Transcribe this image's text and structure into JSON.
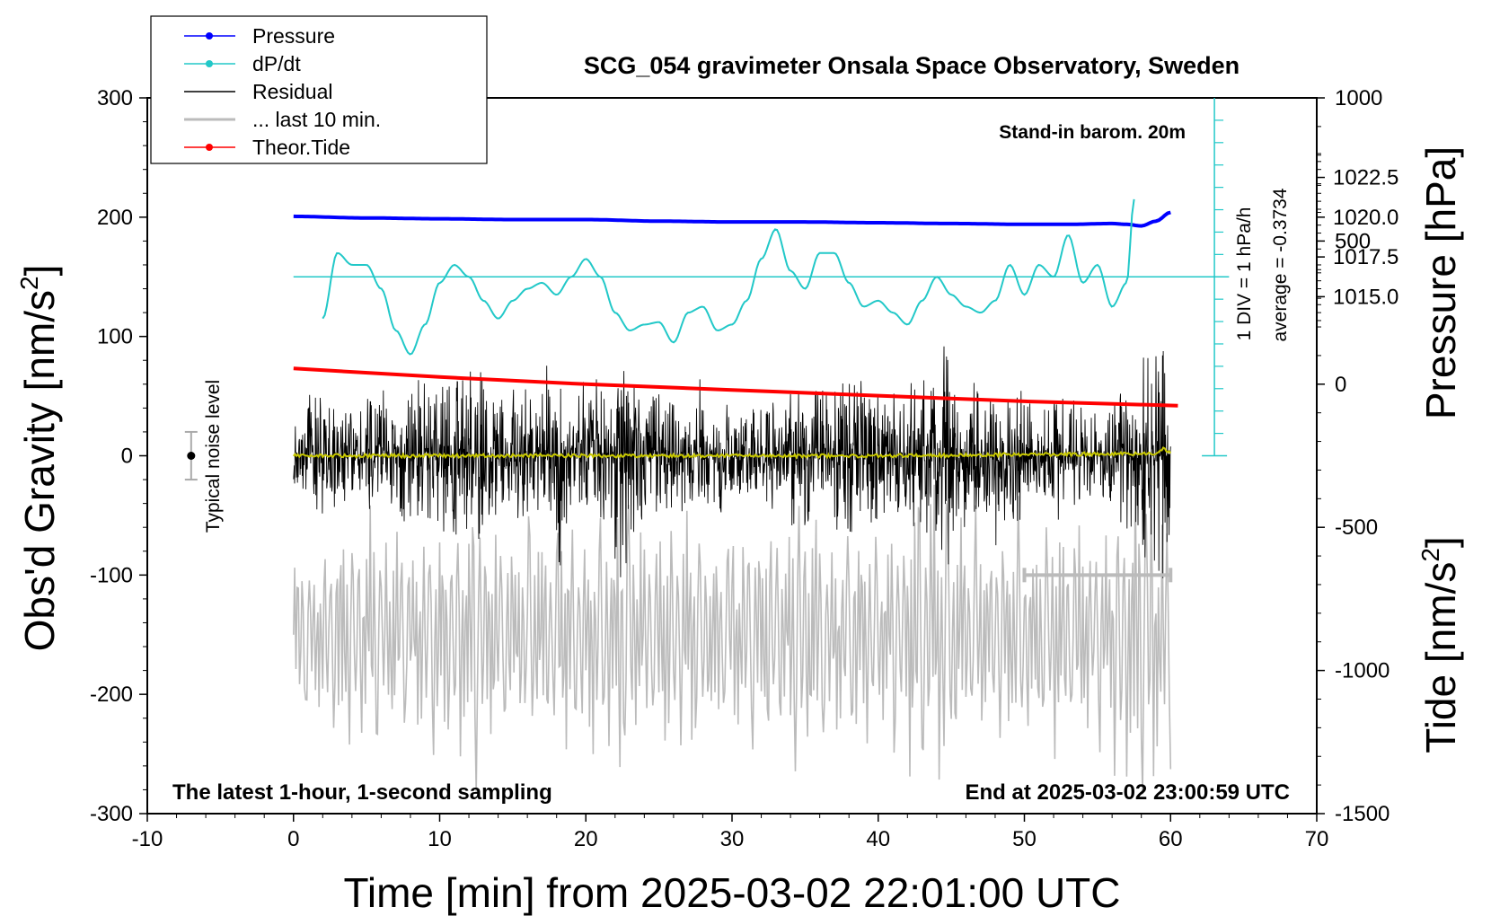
{
  "chart_data": {
    "type": "line",
    "title": "SCG_054 gravimeter Onsala Space Observatory, Sweden",
    "xlabel": "Time [min] from 2025-03-02 22:01:00 UTC",
    "ylabel_left_prefix": "Obs'd Gravity [nm/s",
    "ylabel_left_sup": "2",
    "ylabel_left_suffix": "]",
    "ylabel_pressure": "Pressure [hPa]",
    "ylabel_tide_prefix": "Tide [nm/s",
    "ylabel_tide_sup": "2",
    "ylabel_tide_suffix": "]",
    "xlim": [
      -10,
      70
    ],
    "ylim_gravity": [
      -300,
      300
    ],
    "ylim_tide": [
      -1500,
      1000
    ],
    "x_ticks": [
      "-10",
      "0",
      "10",
      "20",
      "30",
      "40",
      "50",
      "60",
      "70"
    ],
    "y_ticks_gravity": [
      "300",
      "200",
      "100",
      "0",
      "-100",
      "-200",
      "-300"
    ],
    "y_ticks_pressure": [
      "1022.5",
      "1020.0",
      "1017.5",
      "1015.0"
    ],
    "y_ticks_tide": [
      "1000",
      "500",
      "0",
      "-500",
      "-1000",
      "-1500"
    ],
    "pressure_ticks_values": [
      1022.5,
      1020.0,
      1017.5,
      1015.0
    ],
    "tide_ticks_values": [
      1000,
      500,
      0,
      -500,
      -1000,
      -1500
    ],
    "annotations": {
      "barometer": "Stand-in barom. 20m",
      "dpdt_div": "1 DIV = 1 hPa/h",
      "average": "average = -0.3734",
      "noise": "Typical noise level",
      "latest": "The latest 1-hour, 1-second sampling",
      "end": "End at 2025-03-02 23:00:59 UTC"
    },
    "legend": [
      {
        "label": "Pressure",
        "color": "#0000ff",
        "marker": true
      },
      {
        "label": "dP/dt",
        "color": "#22c8c8",
        "marker": true
      },
      {
        "label": "Residual",
        "color": "#000000",
        "marker": false
      },
      {
        "label": "... last 10 min.",
        "color": "#bbbbbb",
        "marker": false
      },
      {
        "label": "Theor.Tide",
        "color": "#ff0000",
        "marker": true
      }
    ],
    "series": [
      {
        "name": "Pressure",
        "axis": "pressure_hPa",
        "color": "#0000ff",
        "x": [
          0,
          5,
          10,
          15,
          20,
          25,
          30,
          35,
          40,
          45,
          50,
          53,
          56,
          57,
          58,
          59,
          60
        ],
        "values": [
          1020.05,
          1019.95,
          1019.9,
          1019.85,
          1019.85,
          1019.75,
          1019.7,
          1019.7,
          1019.65,
          1019.6,
          1019.55,
          1019.55,
          1019.6,
          1019.55,
          1019.45,
          1019.75,
          1020.3
        ]
      },
      {
        "name": "dP/dt",
        "axis": "dpdt_gravity_units",
        "color": "#22c8c8",
        "x": [
          2,
          3,
          4,
          5,
          6,
          7,
          8,
          9,
          10,
          11,
          12,
          13,
          14,
          15,
          16,
          17,
          18,
          19,
          20,
          21,
          22,
          23,
          24,
          25,
          26,
          27,
          28,
          29,
          30,
          31,
          32,
          33,
          34,
          35,
          36,
          37,
          38,
          39,
          40,
          41,
          42,
          43,
          44,
          45,
          46,
          47,
          48,
          49,
          50,
          51,
          52,
          53,
          54,
          55,
          56,
          57,
          57.5
        ],
        "values": [
          115,
          170,
          160,
          160,
          140,
          105,
          85,
          110,
          145,
          160,
          150,
          130,
          115,
          130,
          140,
          145,
          135,
          150,
          165,
          150,
          120,
          105,
          110,
          112,
          95,
          120,
          125,
          105,
          110,
          130,
          165,
          190,
          155,
          140,
          170,
          170,
          145,
          125,
          130,
          120,
          110,
          130,
          150,
          135,
          125,
          120,
          130,
          160,
          135,
          160,
          150,
          185,
          145,
          160,
          125,
          145,
          215
        ]
      },
      {
        "name": "Residual",
        "axis": "gravity",
        "color": "#000000",
        "x_start": 0,
        "x_end": 60,
        "envelope": [
          40,
          70,
          60,
          50,
          50,
          60,
          50,
          70,
          80,
          70,
          80,
          100,
          90,
          70,
          60,
          70,
          60,
          70,
          80,
          70,
          60,
          70,
          130,
          80,
          70,
          60,
          60,
          60,
          50,
          60,
          50,
          50,
          60,
          50,
          90,
          70,
          70,
          80,
          80,
          70,
          60,
          70,
          80,
          100,
          120,
          90,
          80,
          60,
          60,
          70,
          60,
          50,
          60,
          60,
          50,
          60,
          70,
          80,
          110,
          130
        ]
      },
      {
        "name": "Residual mean",
        "axis": "gravity",
        "color": "#c8c800",
        "x": [
          0,
          10,
          20,
          30,
          40,
          50,
          59,
          59.5,
          60
        ],
        "values": [
          0,
          0,
          0,
          0,
          0,
          1,
          2,
          6,
          2
        ]
      },
      {
        "name": "... last 10 min.",
        "axis": "gravity_offset_-150",
        "color": "#bbbbbb",
        "x_start": 0,
        "x_end": 60,
        "envelope": [
          90,
          80,
          100,
          110,
          120,
          120,
          110,
          100,
          100,
          110,
          110,
          130,
          150,
          120,
          110,
          100,
          110,
          110,
          120,
          110,
          110,
          120,
          150,
          120,
          110,
          120,
          110,
          110,
          100,
          100,
          110,
          120,
          120,
          110,
          170,
          130,
          110,
          100,
          110,
          110,
          100,
          120,
          140,
          150,
          150,
          130,
          110,
          100,
          110,
          120,
          120,
          110,
          120,
          110,
          110,
          120,
          150,
          170,
          170,
          130
        ]
      },
      {
        "name": "Theor.Tide",
        "axis": "tide",
        "color": "#ff0000",
        "x": [
          0,
          10,
          20,
          30,
          40,
          50,
          60.5
        ],
        "values": [
          55,
          25,
          0,
          -20,
          -40,
          -60,
          -75
        ]
      }
    ],
    "noise_bar": {
      "x": -7,
      "center": 0,
      "half": 20
    },
    "last10_bar": {
      "x": [
        50,
        60
      ],
      "y": -100
    },
    "dpdt_axis": {
      "x": 63,
      "y_from": 0,
      "y_to": 300,
      "zero_line_y": 150,
      "tick_step": 18.75
    }
  }
}
